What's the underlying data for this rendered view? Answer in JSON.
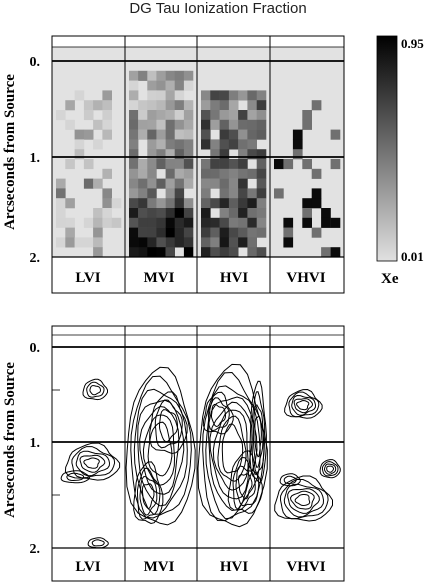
{
  "title": "DG Tau Ionization Fraction",
  "chart_data": [
    {
      "type": "heatmap",
      "title": "DG Tau Ionization Fraction",
      "ylabel": "Arcseconds from Source",
      "categories": [
        "LVI",
        "MVI",
        "HVI",
        "VHVI"
      ],
      "y_ticks": [
        "0.",
        "1.",
        "2."
      ],
      "ylim": [
        0,
        2
      ],
      "y_inverted": true,
      "colorbar": {
        "label": "Xe",
        "min": 0.01,
        "max": 0.95,
        "min_label": "0.01",
        "max_label": "0.95"
      },
      "colormap": {
        "low": "#e0e0e0",
        "high": "#000000"
      },
      "grid": false,
      "cell_height_arcsec": 0.1
    },
    {
      "type": "contour",
      "ylabel": "Arcseconds from Source",
      "categories": [
        "LVI",
        "MVI",
        "HVI",
        "VHVI"
      ],
      "y_ticks": [
        "0.",
        "1.",
        "2."
      ],
      "ylim": [
        0,
        2
      ],
      "y_inverted": true,
      "grid": false
    }
  ]
}
